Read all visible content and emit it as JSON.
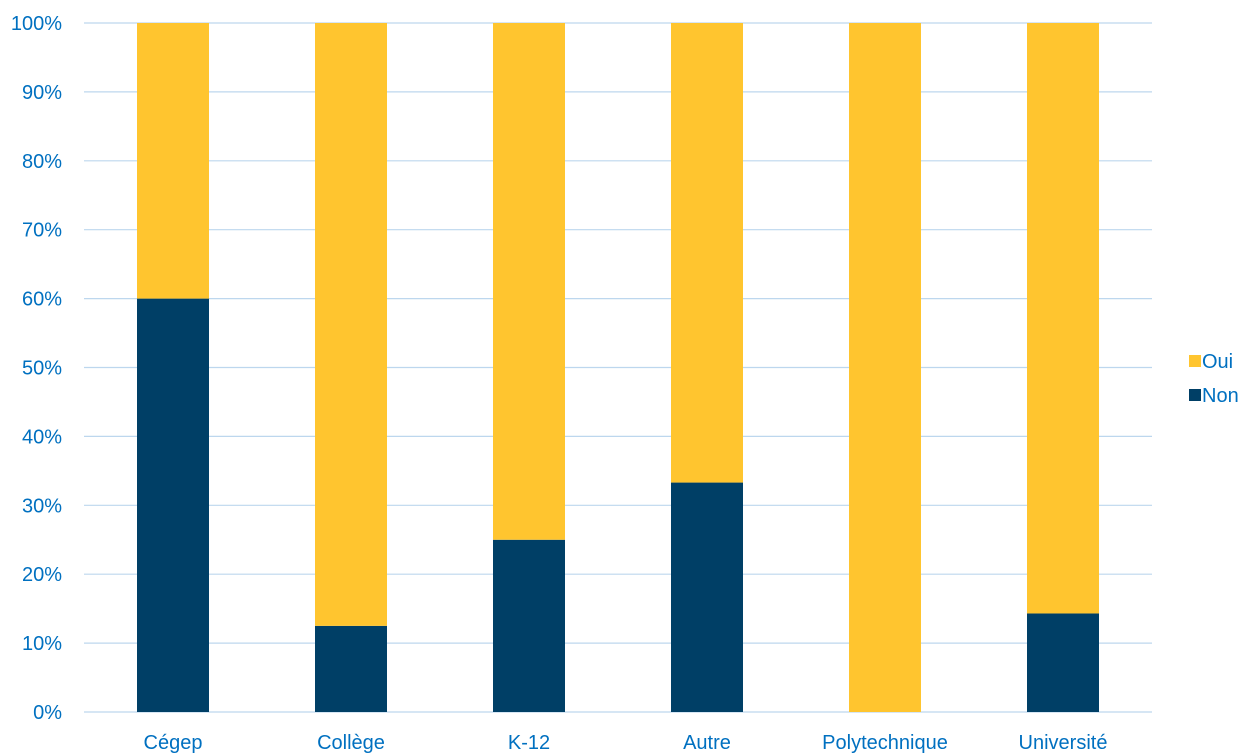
{
  "colors": {
    "text": "#0070C0",
    "grid": "#BDD7EE",
    "oui": "#FFC52F",
    "non": "#003F66"
  },
  "chart_data": {
    "type": "bar",
    "stacked": true,
    "percent_stacked": true,
    "categories": [
      "Cégep",
      "Collège",
      "K-12",
      "Autre",
      "Polytechnique",
      "Université"
    ],
    "series": [
      {
        "name": "Non",
        "values": [
          60,
          12.5,
          25,
          33.3,
          0,
          14.3
        ]
      },
      {
        "name": "Oui",
        "values": [
          40,
          87.5,
          75,
          66.7,
          100,
          85.7
        ]
      }
    ],
    "ylim": [
      0,
      100
    ],
    "yticks": [
      "0%",
      "10%",
      "20%",
      "30%",
      "40%",
      "50%",
      "60%",
      "70%",
      "80%",
      "90%",
      "100%"
    ],
    "grid": true,
    "legend": {
      "position": "right",
      "entries": [
        "Oui",
        "Non"
      ]
    },
    "title": "",
    "xlabel": "",
    "ylabel": ""
  }
}
